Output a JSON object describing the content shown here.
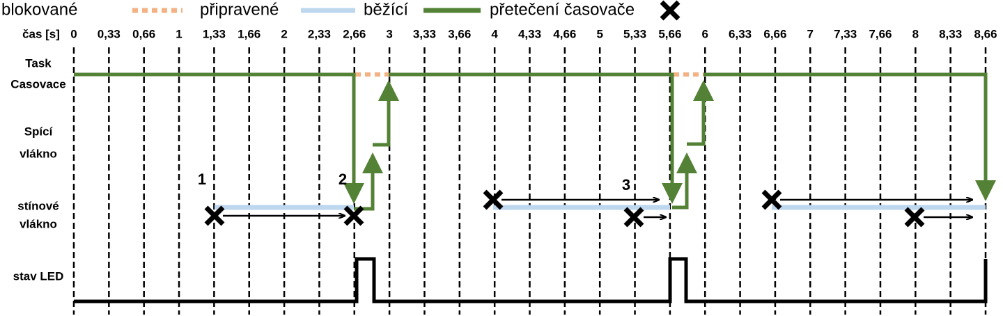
{
  "legend": {
    "items": [
      "blokované",
      "připravené",
      "běžící",
      "přetečení časovače"
    ]
  },
  "time_axis": {
    "label": "čas [s]",
    "ticks": [
      "0",
      "0,33",
      "0,66",
      "1",
      "1,33",
      "1,66",
      "2",
      "2,33",
      "2,66",
      "3",
      "3,33",
      "3,66",
      "4",
      "4,33",
      "4,66",
      "5",
      "5,33",
      "5,66",
      "6",
      "6,33",
      "6,66",
      "7",
      "7,33",
      "7,66",
      "8",
      "8,33",
      "8,66"
    ]
  },
  "rows": [
    [
      "Task",
      "Casovace"
    ],
    [
      "Spící",
      "vlákno"
    ],
    [
      "stínové",
      "vlákno"
    ],
    [
      "stav LED"
    ]
  ],
  "markers": [
    "1",
    "2",
    "3"
  ]
}
